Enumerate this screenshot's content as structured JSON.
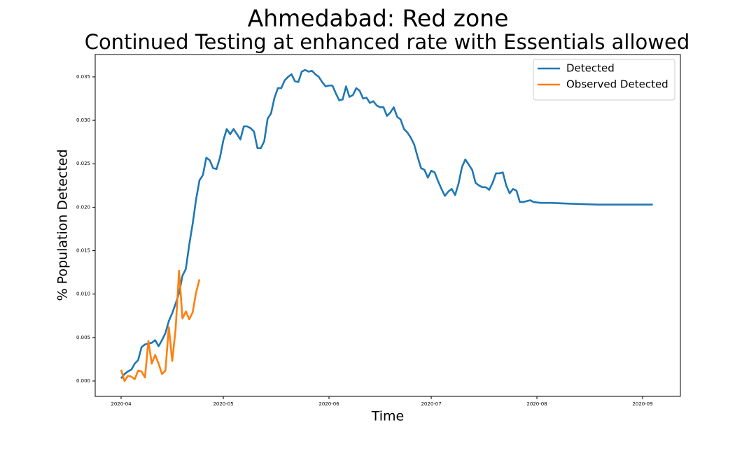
{
  "chart_data": {
    "type": "line",
    "title": "Ahmedabad: Red zone",
    "title_color": "#ff0000",
    "subtitle": "Continued Testing at enhanced rate with Essentials allowed",
    "x_label": "Time",
    "y_label": "% Population Detected",
    "legend": "upper right",
    "xlim": [
      -7.6,
      164.1
    ],
    "xticks": [
      {
        "value": 0,
        "label": "2020-04"
      },
      {
        "value": 30,
        "label": "2020-05"
      },
      {
        "value": 61,
        "label": "2020-06"
      },
      {
        "value": 91,
        "label": "2020-07"
      },
      {
        "value": 122,
        "label": "2020-08"
      },
      {
        "value": 153,
        "label": "2020-09"
      }
    ],
    "ylim": [
      -0.00177,
      0.03757
    ],
    "yticks": [
      {
        "value": 0,
        "label": "0.000"
      },
      {
        "value": 0.005,
        "label": "0.005"
      },
      {
        "value": 0.01,
        "label": "0.010"
      },
      {
        "value": 0.015,
        "label": "0.015"
      },
      {
        "value": 0.02,
        "label": "0.020"
      },
      {
        "value": 0.025,
        "label": "0.025"
      },
      {
        "value": 0.03,
        "label": "0.030"
      },
      {
        "value": 0.035,
        "label": "0.035"
      }
    ],
    "series": [
      {
        "name": "Detected",
        "color": "#1f77b4",
        "x": [
          0,
          1,
          2,
          3,
          4,
          5,
          6,
          7,
          9,
          10,
          11,
          12,
          13,
          14,
          15,
          16,
          17,
          18,
          19,
          20,
          21,
          22,
          23,
          24,
          25,
          26,
          27,
          28,
          29,
          30,
          31,
          32,
          33,
          34,
          35,
          36,
          37,
          38,
          39,
          40,
          41,
          42,
          43,
          44,
          45,
          46,
          47,
          48,
          49,
          50,
          51,
          52,
          53,
          54,
          55,
          56,
          57,
          58,
          59,
          60,
          61,
          62,
          63,
          64,
          65,
          66,
          67,
          68,
          69,
          70,
          71,
          72,
          73,
          74,
          75,
          76,
          77,
          78,
          79,
          80,
          81,
          82,
          83,
          84,
          85,
          86,
          87,
          88,
          89,
          90,
          91,
          92,
          93,
          94,
          95,
          96,
          97,
          98,
          99,
          100,
          101,
          102,
          103,
          104,
          105,
          106,
          107,
          108,
          109,
          110,
          111,
          112,
          113,
          114,
          115,
          116,
          117,
          118,
          119,
          120,
          121,
          123,
          126,
          132,
          140,
          156
        ],
        "values": [
          0.0003,
          0.0008,
          0.0011,
          0.0013,
          0.002,
          0.0024,
          0.0039,
          0.0042,
          0.0044,
          0.0047,
          0.004,
          0.0047,
          0.0055,
          0.0069,
          0.0078,
          0.0089,
          0.0101,
          0.0121,
          0.0129,
          0.0157,
          0.0181,
          0.0209,
          0.0231,
          0.0237,
          0.0257,
          0.0254,
          0.0245,
          0.0244,
          0.0257,
          0.0277,
          0.029,
          0.0284,
          0.029,
          0.0284,
          0.0278,
          0.0293,
          0.0293,
          0.0291,
          0.0287,
          0.0268,
          0.0268,
          0.0276,
          0.0302,
          0.0308,
          0.0326,
          0.0337,
          0.0337,
          0.0346,
          0.035,
          0.0353,
          0.0345,
          0.0344,
          0.0356,
          0.0358,
          0.0356,
          0.0357,
          0.0353,
          0.035,
          0.0344,
          0.0339,
          0.034,
          0.034,
          0.0331,
          0.0323,
          0.0324,
          0.0339,
          0.0327,
          0.0329,
          0.0337,
          0.0334,
          0.0325,
          0.0326,
          0.032,
          0.0322,
          0.0317,
          0.0315,
          0.0315,
          0.0305,
          0.0309,
          0.0315,
          0.0304,
          0.0301,
          0.029,
          0.0286,
          0.028,
          0.0272,
          0.0258,
          0.0245,
          0.0243,
          0.0234,
          0.0242,
          0.024,
          0.023,
          0.0221,
          0.0213,
          0.0218,
          0.0221,
          0.0214,
          0.0227,
          0.0246,
          0.0255,
          0.0249,
          0.0243,
          0.0228,
          0.0225,
          0.0223,
          0.0223,
          0.022,
          0.0228,
          0.0239,
          0.0239,
          0.024,
          0.0225,
          0.0216,
          0.0221,
          0.0219,
          0.0206,
          0.0206,
          0.0207,
          0.0208,
          0.0206,
          0.0205,
          0.0205,
          0.0204,
          0.0203,
          0.0203
        ]
      },
      {
        "name": "Observed Detected",
        "color": "#ff7f0e",
        "x": [
          0,
          1,
          2,
          3,
          4,
          5,
          6,
          7,
          8,
          9,
          10,
          11,
          12,
          13,
          14,
          15,
          16,
          17,
          18,
          19,
          20,
          21,
          22,
          23
        ],
        "values": [
          0.0013,
          0.0,
          0.0006,
          0.0005,
          0.0002,
          0.0012,
          0.0011,
          0.0004,
          0.0046,
          0.002,
          0.003,
          0.002,
          0.0008,
          0.0012,
          0.0062,
          0.0023,
          0.006,
          0.0127,
          0.0072,
          0.008,
          0.0071,
          0.0079,
          0.0102,
          0.0117
        ]
      }
    ]
  }
}
